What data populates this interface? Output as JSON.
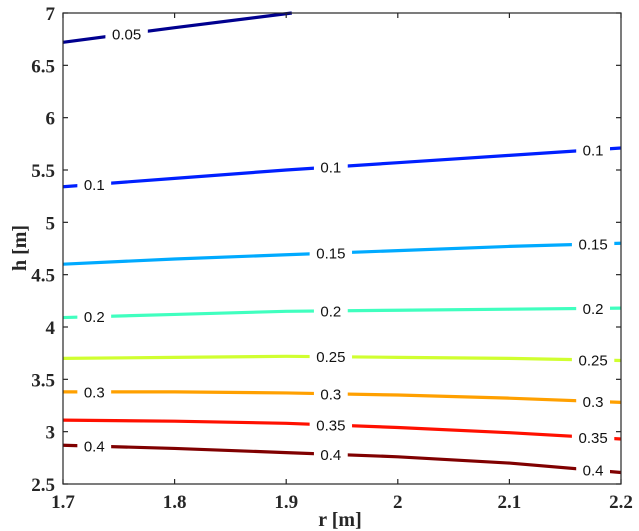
{
  "chart_data": {
    "type": "contour",
    "title": "",
    "xlabel": "r [m]",
    "ylabel": "h [m]",
    "xlim": [
      1.7,
      2.2
    ],
    "ylim": [
      2.5,
      7
    ],
    "xticks": [
      "1.7",
      "1.8",
      "1.9",
      "2",
      "2.1",
      "2.2"
    ],
    "yticks": [
      "2.5",
      "3",
      "3.5",
      "4",
      "4.5",
      "5",
      "5.5",
      "6",
      "6.5",
      "7"
    ],
    "grid": false,
    "series": [
      {
        "name": "0.05",
        "color": "#00008f",
        "x": [
          1.7,
          1.8,
          1.905
        ],
        "y": [
          6.72,
          6.86,
          7.0
        ],
        "labels": [
          {
            "text": "0.05",
            "x": 1.757
          }
        ]
      },
      {
        "name": "0.1",
        "color": "#0020ff",
        "x": [
          1.7,
          1.8,
          1.9,
          2.0,
          2.1,
          2.2
        ],
        "y": [
          5.34,
          5.42,
          5.5,
          5.57,
          5.64,
          5.71
        ],
        "labels": [
          {
            "text": "0.1",
            "x": 1.728
          },
          {
            "text": "0.1",
            "x": 1.94
          },
          {
            "text": "0.1",
            "x": 2.175
          }
        ]
      },
      {
        "name": "0.15",
        "color": "#00aaff",
        "x": [
          1.7,
          1.8,
          1.9,
          2.0,
          2.1,
          2.2
        ],
        "y": [
          4.6,
          4.65,
          4.69,
          4.73,
          4.77,
          4.8
        ],
        "labels": [
          {
            "text": "0.15",
            "x": 1.94
          },
          {
            "text": "0.15",
            "x": 2.175
          }
        ]
      },
      {
        "name": "0.2",
        "color": "#40ffbf",
        "x": [
          1.7,
          1.8,
          1.9,
          2.0,
          2.1,
          2.2
        ],
        "y": [
          4.09,
          4.12,
          4.15,
          4.16,
          4.17,
          4.18
        ],
        "labels": [
          {
            "text": "0.2",
            "x": 1.728
          },
          {
            "text": "0.2",
            "x": 1.94
          },
          {
            "text": "0.2",
            "x": 2.175
          }
        ]
      },
      {
        "name": "0.25",
        "color": "#d0ff30",
        "x": [
          1.7,
          1.8,
          1.9,
          2.0,
          2.1,
          2.2
        ],
        "y": [
          3.7,
          3.71,
          3.72,
          3.71,
          3.7,
          3.68
        ],
        "labels": [
          {
            "text": "0.25",
            "x": 1.94
          },
          {
            "text": "0.25",
            "x": 2.175
          }
        ]
      },
      {
        "name": "0.3",
        "color": "#ffa000",
        "x": [
          1.7,
          1.8,
          1.9,
          2.0,
          2.1,
          2.2
        ],
        "y": [
          3.38,
          3.38,
          3.37,
          3.35,
          3.32,
          3.28
        ],
        "labels": [
          {
            "text": "0.3",
            "x": 1.728
          },
          {
            "text": "0.3",
            "x": 1.94
          },
          {
            "text": "0.3",
            "x": 2.175
          }
        ]
      },
      {
        "name": "0.35",
        "color": "#ff1000",
        "x": [
          1.7,
          1.8,
          1.9,
          2.0,
          2.1,
          2.2
        ],
        "y": [
          3.11,
          3.1,
          3.08,
          3.04,
          2.99,
          2.93
        ],
        "labels": [
          {
            "text": "0.35",
            "x": 1.94
          },
          {
            "text": "0.35",
            "x": 2.175
          }
        ]
      },
      {
        "name": "0.4",
        "color": "#800000",
        "x": [
          1.7,
          1.8,
          1.9,
          2.0,
          2.1,
          2.2
        ],
        "y": [
          2.87,
          2.84,
          2.8,
          2.76,
          2.7,
          2.61
        ],
        "labels": [
          {
            "text": "0.4",
            "x": 1.728
          },
          {
            "text": "0.4",
            "x": 1.94
          },
          {
            "text": "0.4",
            "x": 2.175
          }
        ]
      }
    ]
  }
}
